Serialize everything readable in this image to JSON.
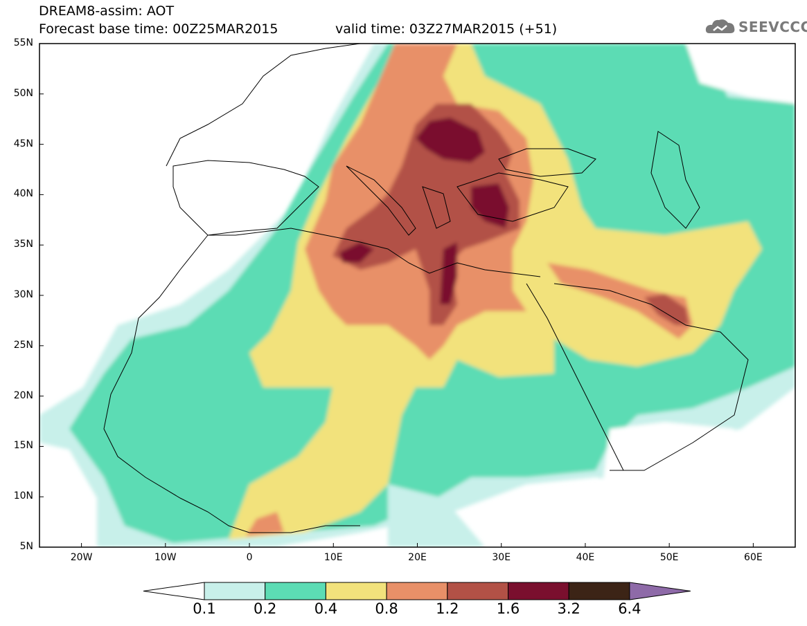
{
  "header": {
    "title_line1": "DREAM8-assim: AOT",
    "title_line2": "Forecast base time: 00Z25MAR2015",
    "valid_time": "valid time: 03Z27MAR2015 (+51)"
  },
  "logo": {
    "text": "SEEVCCC",
    "icon": "cloud-logo-icon"
  },
  "map": {
    "lat_labels": [
      "55N",
      "50N",
      "45N",
      "40N",
      "35N",
      "30N",
      "25N",
      "20N",
      "15N",
      "10N",
      "5N"
    ],
    "lon_labels": [
      "20W",
      "10W",
      "0",
      "10E",
      "20E",
      "30E",
      "40E",
      "50E",
      "60E"
    ],
    "lat_range": [
      5,
      55
    ],
    "lon_range": [
      -25,
      65
    ],
    "variable": "AOT"
  },
  "colorbar": {
    "labels": [
      "0.1",
      "0.2",
      "0.4",
      "0.8",
      "1.2",
      "1.6",
      "3.2",
      "6.4"
    ],
    "colors": [
      "#ffffff",
      "#c8f0ea",
      "#5cdcb4",
      "#f2e27c",
      "#e89068",
      "#b25146",
      "#7a0f2e",
      "#3c2416",
      "#8e6aa8"
    ]
  }
}
